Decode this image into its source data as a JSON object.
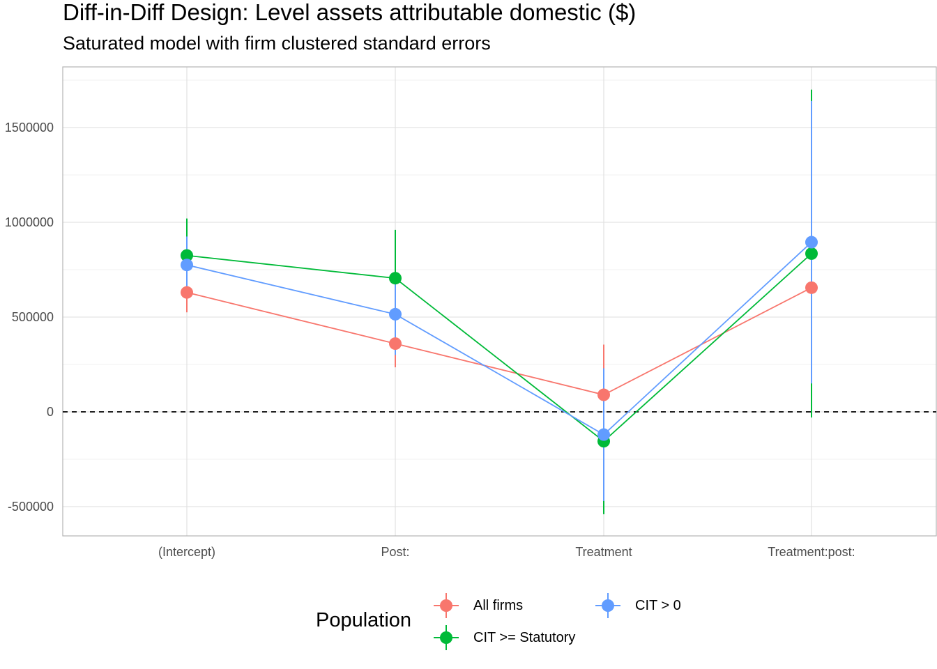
{
  "chart_data": {
    "type": "scatter",
    "title": "Diff-in-Diff Design: Level assets attributable domestic  ($)",
    "subtitle": "Saturated model with firm clustered standard errors",
    "categories": [
      "(Intercept)",
      "Post:",
      "Treatment",
      "Treatment:post:"
    ],
    "yticks": [
      -500000,
      0,
      500000,
      1000000,
      1500000
    ],
    "ylim": [
      -650000,
      1800000
    ],
    "grid": true,
    "reference_line": 0,
    "legend": {
      "title": "Population",
      "position": "bottom"
    },
    "series": [
      {
        "name": "All firms",
        "color": "#F8766D",
        "values": [
          630000,
          360000,
          90000,
          655000
        ],
        "lower": [
          525000,
          235000,
          -170000,
          140000
        ],
        "upper": [
          740000,
          485000,
          355000,
          1170000
        ]
      },
      {
        "name": "CIT >= Statutory",
        "color": "#00BA38",
        "values": [
          825000,
          705000,
          -155000,
          835000
        ],
        "lower": [
          630000,
          455000,
          -540000,
          -30000
        ],
        "upper": [
          1020000,
          960000,
          230000,
          1700000
        ]
      },
      {
        "name": "CIT > 0",
        "color": "#619CFF",
        "values": [
          775000,
          515000,
          -120000,
          895000
        ],
        "lower": [
          625000,
          300000,
          -470000,
          150000
        ],
        "upper": [
          925000,
          730000,
          230000,
          1640000
        ]
      }
    ]
  }
}
